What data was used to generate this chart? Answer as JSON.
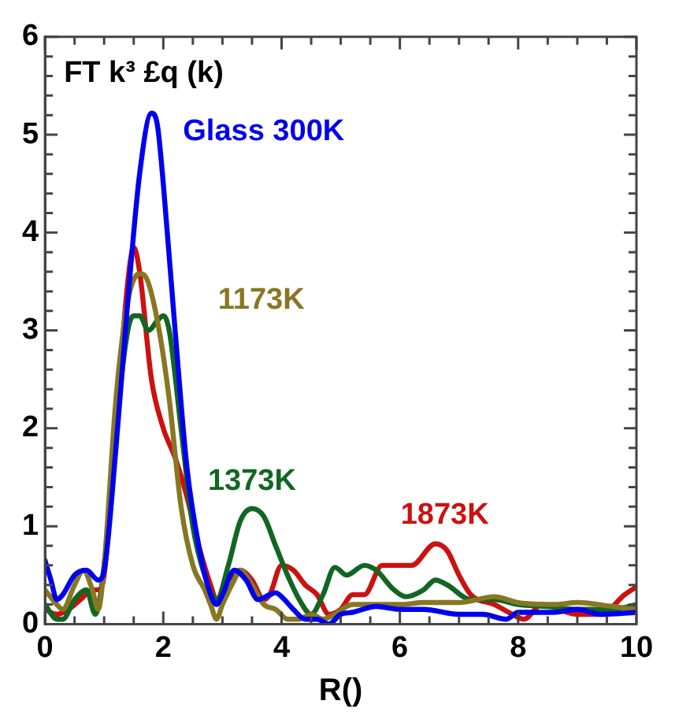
{
  "chart_data": {
    "type": "line",
    "title": "FT k³ £q (k)",
    "xlabel": "R()",
    "xlim": [
      0,
      10
    ],
    "ylim": [
      0,
      6
    ],
    "xticks": [
      0,
      {
        "value": 0.5,
        "label": null
      },
      {
        "value": 1,
        "label": null
      },
      {
        "value": 1.5,
        "label": null
      },
      2,
      {
        "value": 2.5,
        "label": null
      },
      {
        "value": 3,
        "label": null
      },
      {
        "value": 3.5,
        "label": null
      },
      4,
      {
        "value": 4.5,
        "label": null
      },
      {
        "value": 5,
        "label": null
      },
      {
        "value": 5.5,
        "label": null
      },
      6,
      {
        "value": 6.5,
        "label": null
      },
      {
        "value": 7,
        "label": null
      },
      {
        "value": 7.5,
        "label": null
      },
      8,
      {
        "value": 8.5,
        "label": null
      },
      {
        "value": 9,
        "label": null
      },
      {
        "value": 9.5,
        "label": null
      },
      10
    ],
    "yticks": [
      0,
      {
        "value": 0.2,
        "label": null
      },
      {
        "value": 0.4,
        "label": null
      },
      {
        "value": 0.6,
        "label": null
      },
      {
        "value": 0.8,
        "label": null
      },
      1,
      {
        "value": 1.2,
        "label": null
      },
      {
        "value": 1.4,
        "label": null
      },
      {
        "value": 1.6,
        "label": null
      },
      {
        "value": 1.8,
        "label": null
      },
      2,
      {
        "value": 2.2,
        "label": null
      },
      {
        "value": 2.4,
        "label": null
      },
      {
        "value": 2.6,
        "label": null
      },
      {
        "value": 2.8,
        "label": null
      },
      3,
      {
        "value": 3.2,
        "label": null
      },
      {
        "value": 3.4,
        "label": null
      },
      {
        "value": 3.6,
        "label": null
      },
      {
        "value": 3.8,
        "label": null
      },
      4,
      {
        "value": 4.2,
        "label": null
      },
      {
        "value": 4.4,
        "label": null
      },
      {
        "value": 4.6,
        "label": null
      },
      {
        "value": 4.8,
        "label": null
      },
      5,
      {
        "value": 5.2,
        "label": null
      },
      {
        "value": 5.4,
        "label": null
      },
      {
        "value": 5.6,
        "label": null
      },
      {
        "value": 5.8,
        "label": null
      },
      6
    ],
    "grid": false,
    "legend": false,
    "marker": "none",
    "line_style": "solid",
    "series": [
      {
        "name": "Glass 300K",
        "color": "#0000ee",
        "x": [
          0,
          0.1,
          0.2,
          0.3,
          0.5,
          0.7,
          0.9,
          1.0,
          1.2,
          1.4,
          1.6,
          1.8,
          1.9,
          2.0,
          2.2,
          2.4,
          2.6,
          2.8,
          2.9,
          3.0,
          3.2,
          3.4,
          3.6,
          3.8,
          3.9,
          4.0,
          4.2,
          4.4,
          4.6,
          4.8,
          5.0,
          5.2,
          5.6,
          6.0,
          6.4,
          7.0,
          7.4,
          7.8,
          8.0,
          8.6,
          9.0,
          9.4,
          10
        ],
        "values": [
          0.65,
          0.45,
          0.25,
          0.3,
          0.5,
          0.55,
          0.45,
          0.55,
          1.8,
          3.3,
          4.6,
          5.22,
          5.1,
          4.5,
          3.0,
          1.6,
          0.8,
          0.3,
          0.2,
          0.3,
          0.55,
          0.45,
          0.25,
          0.3,
          0.32,
          0.28,
          0.15,
          0.05,
          0.05,
          0.0,
          0.1,
          0.12,
          0.18,
          0.15,
          0.15,
          0.1,
          0.1,
          0.05,
          0.12,
          0.12,
          0.15,
          0.1,
          0.12
        ]
      },
      {
        "name": "1173K",
        "color": "#887722",
        "x": [
          0,
          0.2,
          0.3,
          0.5,
          0.65,
          0.8,
          0.9,
          1.0,
          1.2,
          1.4,
          1.6,
          1.7,
          1.9,
          2.1,
          2.3,
          2.5,
          2.7,
          2.8,
          2.9,
          3.0,
          3.2,
          3.3,
          3.5,
          3.7,
          3.9,
          4.1,
          4.3,
          4.5,
          4.7,
          4.9,
          5.2,
          5.6,
          6.0,
          6.4,
          7.0,
          7.6,
          8.0,
          8.6,
          9.0,
          9.6,
          10
        ],
        "values": [
          0.35,
          0.2,
          0.15,
          0.4,
          0.55,
          0.35,
          0.15,
          0.6,
          2.3,
          3.3,
          3.58,
          3.55,
          3.1,
          2.3,
          1.2,
          0.6,
          0.35,
          0.2,
          0.05,
          0.2,
          0.45,
          0.55,
          0.4,
          0.2,
          0.15,
          0.05,
          0.05,
          0.1,
          0.05,
          0.1,
          0.2,
          0.2,
          0.2,
          0.22,
          0.22,
          0.28,
          0.22,
          0.2,
          0.22,
          0.18,
          0.15
        ]
      },
      {
        "name": "1373K",
        "color": "#116622",
        "x": [
          0,
          0.2,
          0.3,
          0.5,
          0.7,
          0.85,
          1.0,
          1.2,
          1.4,
          1.5,
          1.6,
          1.75,
          1.9,
          2.0,
          2.1,
          2.3,
          2.5,
          2.7,
          2.9,
          3.1,
          3.3,
          3.5,
          3.7,
          3.9,
          4.1,
          4.3,
          4.5,
          4.7,
          4.9,
          5.1,
          5.4,
          5.6,
          5.9,
          6.1,
          6.4,
          6.6,
          6.8,
          7.2,
          7.6,
          8.0,
          8.5,
          9.0,
          9.6,
          10
        ],
        "values": [
          0.2,
          0.05,
          0.05,
          0.25,
          0.35,
          0.1,
          0.6,
          2.0,
          3.0,
          3.15,
          3.15,
          3.0,
          3.1,
          3.15,
          3.0,
          2.0,
          1.0,
          0.5,
          0.25,
          0.6,
          1.05,
          1.18,
          1.1,
          0.8,
          0.5,
          0.25,
          0.1,
          0.3,
          0.58,
          0.5,
          0.6,
          0.55,
          0.35,
          0.28,
          0.35,
          0.45,
          0.4,
          0.25,
          0.25,
          0.2,
          0.18,
          0.15,
          0.15,
          0.2
        ]
      },
      {
        "name": "1873K",
        "color": "#cc1111",
        "x": [
          0,
          0.2,
          0.4,
          0.6,
          0.8,
          0.9,
          1.0,
          1.2,
          1.4,
          1.5,
          1.6,
          1.8,
          2.0,
          2.2,
          2.4,
          2.6,
          2.8,
          2.9,
          3.1,
          3.3,
          3.5,
          3.7,
          3.8,
          4.0,
          4.2,
          4.4,
          4.6,
          4.8,
          5.0,
          5.2,
          5.4,
          5.7,
          6.0,
          6.2,
          6.6,
          6.8,
          7.0,
          7.2,
          7.6,
          7.9,
          8.1,
          8.4,
          9.0,
          9.4,
          9.8,
          10
        ],
        "values": [
          0.15,
          0.1,
          0.15,
          0.25,
          0.35,
          0.35,
          0.5,
          2.0,
          3.5,
          3.85,
          3.6,
          2.5,
          2.0,
          1.7,
          1.3,
          0.8,
          0.4,
          0.25,
          0.45,
          0.55,
          0.45,
          0.25,
          0.3,
          0.6,
          0.55,
          0.4,
          0.3,
          0.1,
          0.15,
          0.3,
          0.3,
          0.6,
          0.6,
          0.6,
          0.82,
          0.75,
          0.5,
          0.3,
          0.2,
          0.1,
          0.05,
          0.2,
          0.1,
          0.1,
          0.3,
          0.38
        ]
      }
    ]
  }
}
